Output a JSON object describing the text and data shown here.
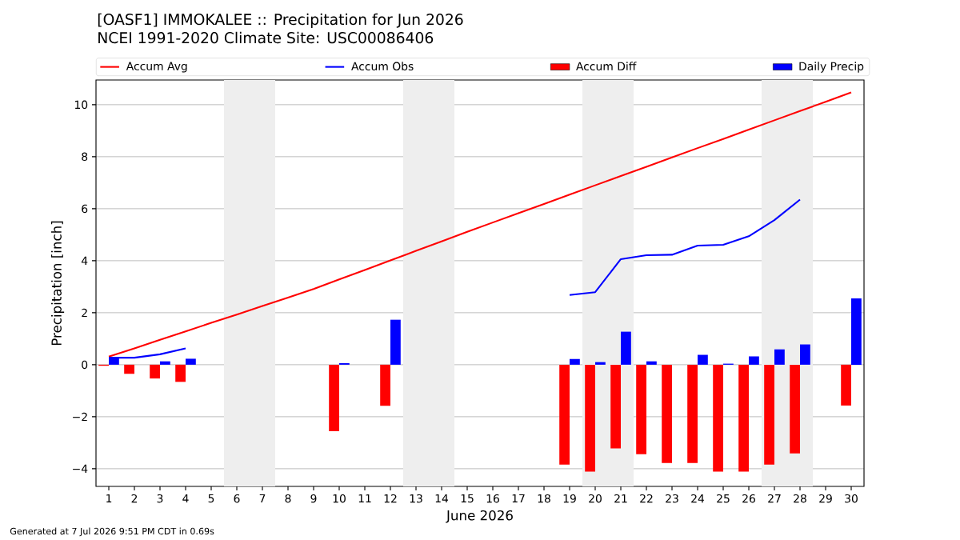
{
  "chart_data": {
    "type": "bar",
    "title": "[OASF1] IMMOKALEE :: Precipitation for Jun 2026",
    "subtitle": "NCEI 1991-2020 Climate Site: USC00086406",
    "xlabel": "June 2026",
    "ylabel": "Precipitation [inch]",
    "x": [
      1,
      2,
      3,
      4,
      5,
      6,
      7,
      8,
      9,
      10,
      11,
      12,
      13,
      14,
      15,
      16,
      17,
      18,
      19,
      20,
      21,
      22,
      23,
      24,
      25,
      26,
      27,
      28,
      29,
      30
    ],
    "series": [
      {
        "name": "Accum Avg",
        "type": "line",
        "color": "#ff0000",
        "values": [
          0.31,
          0.63,
          0.96,
          1.28,
          1.61,
          1.93,
          2.26,
          2.58,
          2.91,
          3.28,
          3.64,
          4.01,
          4.38,
          4.74,
          5.11,
          5.47,
          5.83,
          6.18,
          6.54,
          6.9,
          7.26,
          7.61,
          7.97,
          8.33,
          8.68,
          9.04,
          9.4,
          9.76,
          10.11,
          10.47
        ]
      },
      {
        "name": "Accum Obs",
        "type": "line",
        "color": "#0000ff",
        "values": [
          0.27,
          0.27,
          0.4,
          0.63,
          null,
          null,
          null,
          null,
          null,
          null,
          null,
          null,
          null,
          null,
          null,
          null,
          null,
          null,
          2.68,
          2.79,
          4.06,
          4.21,
          4.23,
          4.58,
          4.61,
          4.94,
          5.56,
          6.35,
          null,
          null
        ]
      },
      {
        "name": "Accum Diff",
        "type": "bar",
        "color": "#ff0000",
        "values": [
          -0.04,
          -0.35,
          -0.53,
          -0.66,
          null,
          null,
          null,
          null,
          null,
          -2.56,
          null,
          -1.58,
          null,
          null,
          null,
          null,
          null,
          null,
          -3.84,
          -4.11,
          -3.22,
          -3.44,
          -3.78,
          -3.78,
          -4.11,
          -4.11,
          -3.84,
          -3.41,
          null,
          -1.57
        ]
      },
      {
        "name": "Daily Precip",
        "type": "bar",
        "color": "#0000ff",
        "values": [
          0.27,
          null,
          0.13,
          0.23,
          null,
          null,
          null,
          null,
          null,
          0.06,
          null,
          1.73,
          null,
          null,
          null,
          null,
          null,
          null,
          0.22,
          0.1,
          1.27,
          0.13,
          null,
          0.38,
          0.04,
          0.32,
          0.59,
          0.78,
          null,
          2.55
        ]
      }
    ],
    "xlim": [
      0.5,
      30.5
    ],
    "xticks": [
      1,
      2,
      3,
      4,
      5,
      6,
      7,
      8,
      9,
      10,
      11,
      12,
      13,
      14,
      15,
      16,
      17,
      18,
      19,
      20,
      21,
      22,
      23,
      24,
      25,
      26,
      27,
      28,
      29,
      30
    ],
    "ylim": [
      -4.68,
      10.95
    ],
    "yticks": [
      {
        "value": -4,
        "label": "−4"
      },
      {
        "value": -2,
        "label": "−2"
      },
      0,
      2,
      4,
      6,
      8,
      10
    ],
    "grid": "y",
    "legend": "top",
    "bands": [
      {
        "axis": "x",
        "from": 5.5,
        "to": 7.5,
        "color": "#eeeeee"
      },
      {
        "axis": "x",
        "from": 12.5,
        "to": 14.5,
        "color": "#eeeeee"
      },
      {
        "axis": "x",
        "from": 19.5,
        "to": 21.5,
        "color": "#eeeeee"
      },
      {
        "axis": "x",
        "from": 26.5,
        "to": 28.5,
        "color": "#eeeeee"
      }
    ],
    "annotations": [
      "Generated at 7 Jul 2026 9:51 PM CDT in 0.69s"
    ]
  }
}
